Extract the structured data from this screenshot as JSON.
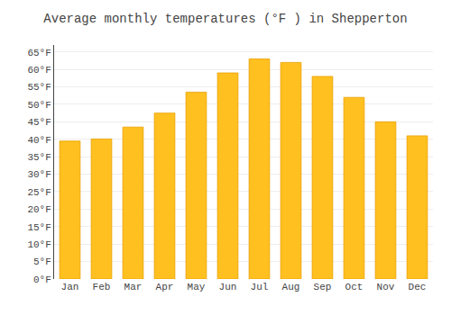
{
  "chart_data": {
    "type": "bar",
    "title": "Average monthly temperatures (°F ) in Shepperton",
    "categories": [
      "Jan",
      "Feb",
      "Mar",
      "Apr",
      "May",
      "Jun",
      "Jul",
      "Aug",
      "Sep",
      "Oct",
      "Nov",
      "Dec"
    ],
    "values": [
      39.5,
      40.1,
      43.5,
      47.5,
      53.5,
      59.0,
      63.0,
      62.0,
      58.0,
      52.0,
      45.0,
      41.0
    ],
    "color": "#FFC020",
    "ylim": [
      0,
      67
    ],
    "yticks": [
      {
        "value": 0,
        "label": "0°F"
      },
      {
        "value": 5,
        "label": "5°F"
      },
      {
        "value": 10,
        "label": "10°F"
      },
      {
        "value": 15,
        "label": "15°F"
      },
      {
        "value": 20,
        "label": "20°F"
      },
      {
        "value": 25,
        "label": "25°F"
      },
      {
        "value": 30,
        "label": "30°F"
      },
      {
        "value": 35,
        "label": "35°F"
      },
      {
        "value": 40,
        "label": "40°F"
      },
      {
        "value": 45,
        "label": "45°F"
      },
      {
        "value": 50,
        "label": "50°F"
      },
      {
        "value": 55,
        "label": "55°F"
      },
      {
        "value": 60,
        "label": "60°F"
      },
      {
        "value": 65,
        "label": "65°F"
      }
    ],
    "grid": true
  }
}
